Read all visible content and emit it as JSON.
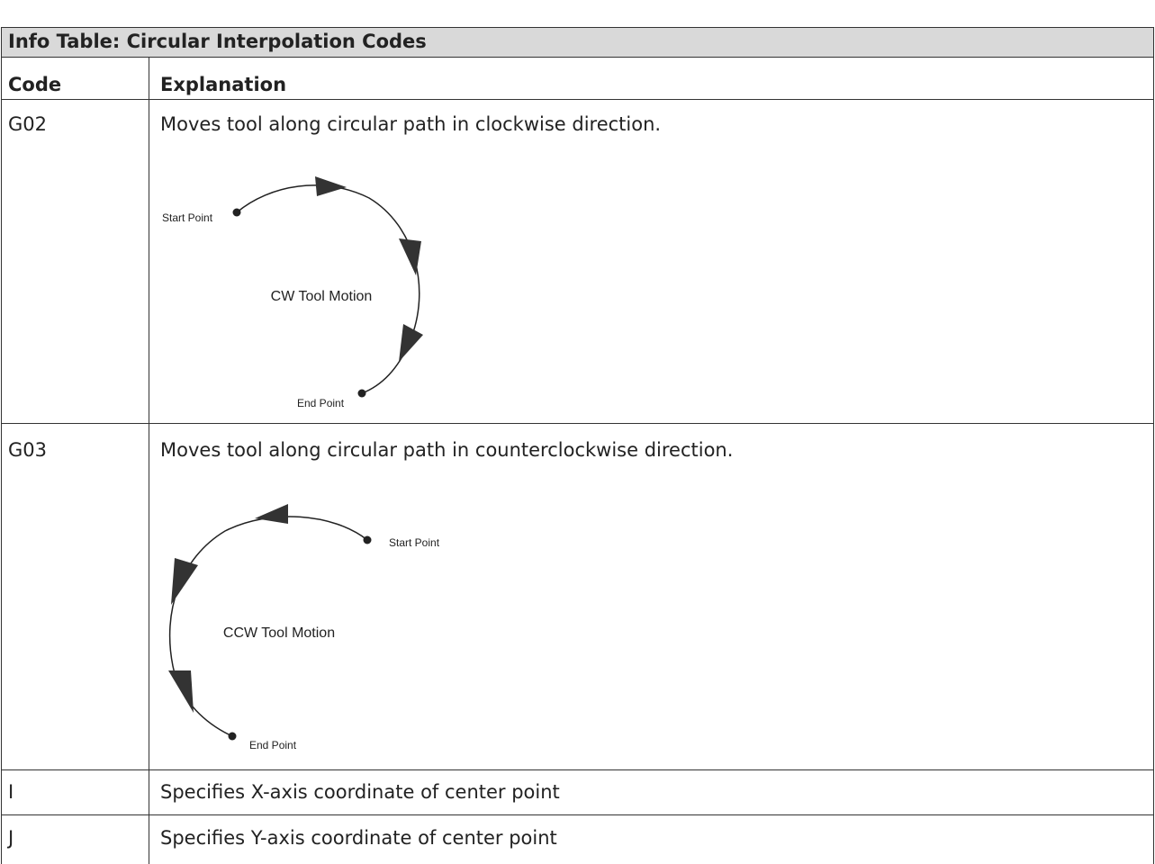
{
  "table": {
    "title": "Info Table: Circular Interpolation Codes",
    "header": [
      "Code",
      "Explanation"
    ],
    "rows": [
      {
        "code": "G02",
        "explanation": "Moves tool along circular path in clockwise direction.",
        "diagram": {
          "start": "Start Point",
          "center": "CW Tool Motion",
          "end": "End Point"
        }
      },
      {
        "code": "G03",
        "explanation": "Moves tool along circular path in counterclockwise direction.",
        "diagram": {
          "start": "Start Point",
          "center": "CCW Tool Motion",
          "end": "End Point"
        }
      },
      {
        "code": "I",
        "explanation": "Specifies X-axis coordinate of center point"
      },
      {
        "code": "J",
        "explanation": "Specifies Y-axis coordinate of center point"
      }
    ]
  }
}
